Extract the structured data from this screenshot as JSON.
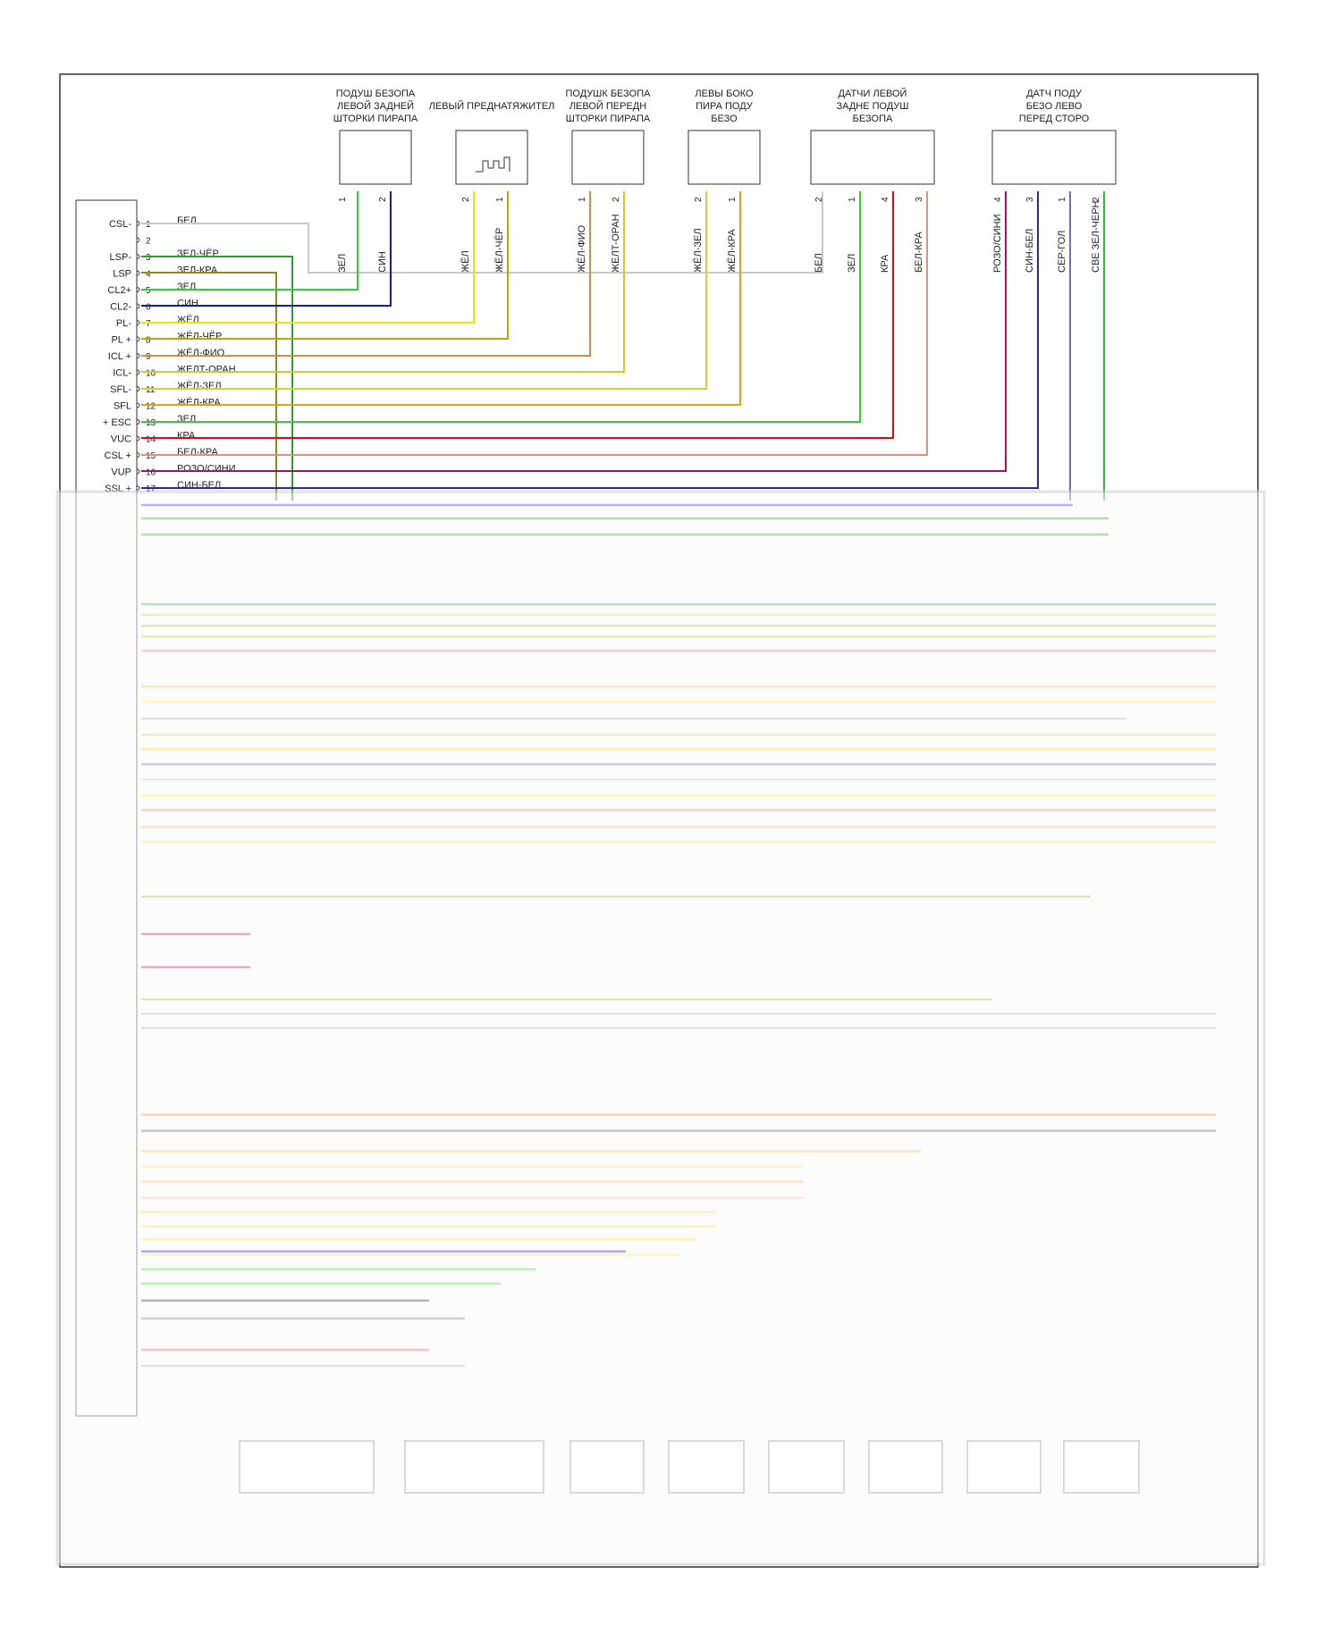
{
  "connector": {
    "pins": [
      {
        "no": "1",
        "sig": "CSL-",
        "wire": "БЕЛ",
        "color": "#c8c8c8"
      },
      {
        "no": "2",
        "sig": "",
        "wire": "",
        "color": ""
      },
      {
        "no": "3",
        "sig": "LSP-",
        "wire": "ЗЕЛ-ЧЁР",
        "color": "#2e9e2e"
      },
      {
        "no": "4",
        "sig": "LSP",
        "wire": "ЗЕЛ-КРА",
        "color": "#7a7a20"
      },
      {
        "no": "5",
        "sig": "CL2+",
        "wire": "ЗЕЛ",
        "color": "#33cc33"
      },
      {
        "no": "6",
        "sig": "CL2-",
        "wire": "СИН",
        "color": "#1a1aa0"
      },
      {
        "no": "7",
        "sig": "PL-",
        "wire": "ЖЁЛ",
        "color": "#e8e800"
      },
      {
        "no": "8",
        "sig": "PL +",
        "wire": "ЖЁЛ-ЧЁР",
        "color": "#b8a800"
      },
      {
        "no": "9",
        "sig": "ICL +",
        "wire": "ЖЁЛ-ФИО",
        "color": "#d09040"
      },
      {
        "no": "10",
        "sig": "ICL-",
        "wire": "ЖЕЛТ-ОРАН",
        "color": "#d8c830"
      },
      {
        "no": "11",
        "sig": "SFL-",
        "wire": "ЖЁЛ-ЗЕЛ",
        "color": "#c8d830"
      },
      {
        "no": "12",
        "sig": "SFL",
        "wire": "ЖЁЛ-КРА",
        "color": "#e0a020"
      },
      {
        "no": "13",
        "sig": "+ ESC",
        "wire": "ЗЕЛ",
        "color": "#33cc33"
      },
      {
        "no": "14",
        "sig": "VUC",
        "wire": "КРА",
        "color": "#cc1111"
      },
      {
        "no": "15",
        "sig": "CSL +",
        "wire": "БЕЛ-КРА",
        "color": "#e09080"
      },
      {
        "no": "16",
        "sig": "VUP",
        "wire": "РОЗО/СИНИ",
        "color": "#cc1177"
      },
      {
        "no": "17",
        "sig": "SSL +",
        "wire": "СИН-БЕЛ",
        "color": "#2a2a90"
      }
    ]
  },
  "components": [
    {
      "title": [
        "ПОДУШ БЕЗОПА",
        "ЛЕВОЙ ЗАДНЕЙ",
        "ШТОРКИ ПИРАПА"
      ],
      "pins": [
        {
          "wire": "ЗЕЛ",
          "no": "1"
        },
        {
          "wire": "СИН",
          "no": "2"
        }
      ]
    },
    {
      "title": [
        "ЛЕВЫЙ ПРЕДНАТЯЖИТЕЛ"
      ],
      "pins": [
        {
          "wire": "ЖЁЛ",
          "no": "2"
        },
        {
          "wire": "ЖЁЛ-ЧЁР",
          "no": "1"
        }
      ]
    },
    {
      "title": [
        "ПОДУШК БЕЗОПА",
        "ЛЕВОЙ ПЕРЕДН",
        "ШТОРКИ ПИРАПА"
      ],
      "pins": [
        {
          "wire": "ЖЁЛ-ФИО",
          "no": "1"
        },
        {
          "wire": "ЖЕЛТ-ОРАН",
          "no": "2"
        }
      ]
    },
    {
      "title": [
        "ЛЕВЫ БОКО",
        "ПИРА ПОДУ",
        "БЕЗО"
      ],
      "pins": [
        {
          "wire": "ЖЁЛ-ЗЕЛ",
          "no": "2"
        },
        {
          "wire": "ЖЁЛ-КРА",
          "no": "1"
        }
      ]
    },
    {
      "title": [
        "ДАТЧИ ЛЕВОЙ",
        "ЗАДНЕ ПОДУШ",
        "БЕЗОПА"
      ],
      "pins": [
        {
          "wire": "БЕЛ",
          "no": "2"
        },
        {
          "wire": "ЗЕЛ",
          "no": "1"
        },
        {
          "wire": "КРА",
          "no": "4"
        },
        {
          "wire": "БЕЛ-КРА",
          "no": "3"
        }
      ]
    },
    {
      "title": [
        "ДАТЧ ПОДУ",
        "БЕЗО ЛЕВО",
        "ПЕРЕД СТОРО"
      ],
      "pins": [
        {
          "wire": "РОЗО/СИНИ",
          "no": "4"
        },
        {
          "wire": "СИН-БЕЛ",
          "no": "3"
        },
        {
          "wire": "СЕР-ГОЛ",
          "no": "1"
        },
        {
          "wire": "СВЕ ЗЕЛ-ЧЕРН",
          "no": "2"
        }
      ]
    }
  ]
}
